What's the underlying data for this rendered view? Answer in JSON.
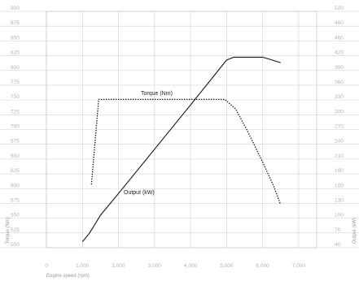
{
  "chart_data": {
    "type": "line",
    "xlabel": "Engine speed (rpm)",
    "ylabel_left": "Torque (Nm)",
    "ylabel_right": "Output (kW)",
    "xlim": [
      0,
      7500
    ],
    "x_ticks": [
      0,
      1000,
      2000,
      3000,
      4000,
      5000,
      6000,
      7000
    ],
    "x_tick_labels": [
      "0",
      "1,000",
      "2,000",
      "3,000",
      "4,000",
      "5,000",
      "6,000",
      "7,000"
    ],
    "ylim_left": [
      500,
      900
    ],
    "y_ticks_left": [
      500,
      525,
      550,
      575,
      600,
      625,
      650,
      675,
      700,
      725,
      750,
      775,
      800,
      825,
      850,
      875,
      900
    ],
    "ylim_right": [
      40,
      520
    ],
    "y_ticks_right": [
      40,
      70,
      100,
      130,
      160,
      190,
      210,
      240,
      270,
      300,
      330,
      360,
      390,
      420,
      460,
      490,
      520
    ],
    "grid": true,
    "series": [
      {
        "name": "Torque (Nm)",
        "axis": "left",
        "style": "dotted",
        "x": [
          1250,
          1450,
          2000,
          3000,
          4000,
          4950,
          5250,
          5600,
          6000,
          6300,
          6500
        ],
        "y": [
          607,
          751,
          751,
          751,
          751,
          751,
          735,
          695,
          645,
          605,
          573
        ]
      },
      {
        "name": "Output (kW)",
        "axis": "right",
        "style": "solid",
        "x": [
          1000,
          1200,
          1500,
          2000,
          3000,
          4000,
          5000,
          5200,
          5600,
          6000,
          6500
        ],
        "y": [
          52,
          70,
          106,
          150,
          240,
          330,
          421,
          427,
          427,
          427,
          416
        ]
      }
    ]
  }
}
